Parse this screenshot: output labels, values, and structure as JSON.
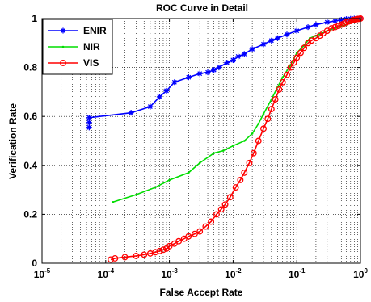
{
  "chart_data": {
    "type": "line",
    "title": "ROC Curve in Detail",
    "xlabel": "False Accept Rate",
    "ylabel": "Verification Rate",
    "xscale": "log",
    "xlim": [
      1e-05,
      1
    ],
    "ylim": [
      0,
      1
    ],
    "xticks": [
      {
        "base": "10",
        "exp": "-5",
        "value": 1e-05
      },
      {
        "base": "10",
        "exp": "-4",
        "value": 0.0001
      },
      {
        "base": "10",
        "exp": "-3",
        "value": 0.001
      },
      {
        "base": "10",
        "exp": "-2",
        "value": 0.01
      },
      {
        "base": "10",
        "exp": "-1",
        "value": 0.1
      },
      {
        "base": "10",
        "exp": "0",
        "value": 1
      }
    ],
    "yticks": [
      "0",
      "0.2",
      "0.4",
      "0.6",
      "0.8",
      "1"
    ],
    "grid": "dotted (x major+minor, y major)",
    "legend": "top-left",
    "series": [
      {
        "name": "ENIR",
        "color": "#0000ff",
        "marker": "star",
        "x": [
          5.5e-05,
          5.5e-05,
          5.5e-05,
          0.00025,
          0.0005,
          0.0007,
          0.0009,
          0.0012,
          0.002,
          0.003,
          0.004,
          0.005,
          0.006,
          0.008,
          0.01,
          0.012,
          0.015,
          0.02,
          0.03,
          0.04,
          0.05,
          0.07,
          0.1,
          0.15,
          0.2,
          0.3,
          0.4,
          0.5,
          0.6,
          0.7,
          0.8,
          0.9,
          1.0
        ],
        "y": [
          0.555,
          0.575,
          0.595,
          0.615,
          0.64,
          0.68,
          0.705,
          0.74,
          0.76,
          0.775,
          0.78,
          0.79,
          0.8,
          0.82,
          0.83,
          0.845,
          0.855,
          0.875,
          0.895,
          0.91,
          0.92,
          0.935,
          0.95,
          0.965,
          0.975,
          0.985,
          0.99,
          0.995,
          0.998,
          0.999,
          1.0,
          1.0,
          1.0
        ]
      },
      {
        "name": "NIR",
        "color": "#00dd00",
        "marker": "point",
        "x": [
          0.00013,
          0.0003,
          0.0006,
          0.001,
          0.002,
          0.003,
          0.005,
          0.007,
          0.01,
          0.015,
          0.02,
          0.025,
          0.03,
          0.04,
          0.05,
          0.06,
          0.08,
          0.1,
          0.13,
          0.16,
          0.2,
          0.25,
          0.3,
          0.4,
          0.5,
          0.6,
          0.7,
          0.8,
          0.9,
          1.0
        ],
        "y": [
          0.25,
          0.28,
          0.31,
          0.34,
          0.37,
          0.41,
          0.45,
          0.46,
          0.48,
          0.5,
          0.53,
          0.57,
          0.61,
          0.67,
          0.72,
          0.76,
          0.81,
          0.86,
          0.89,
          0.92,
          0.93,
          0.94,
          0.95,
          0.96,
          0.97,
          0.975,
          0.985,
          0.99,
          0.995,
          1.0
        ]
      },
      {
        "name": "VIS",
        "color": "#ff0000",
        "marker": "circle",
        "x": [
          0.00012,
          0.00014,
          0.0002,
          0.0003,
          0.0004,
          0.0005,
          0.0006,
          0.0007,
          0.0008,
          0.0009,
          0.001,
          0.0012,
          0.0014,
          0.0017,
          0.002,
          0.0025,
          0.003,
          0.0037,
          0.0045,
          0.0055,
          0.0065,
          0.0075,
          0.009,
          0.011,
          0.013,
          0.015,
          0.018,
          0.021,
          0.025,
          0.03,
          0.035,
          0.04,
          0.046,
          0.053,
          0.06,
          0.07,
          0.08,
          0.09,
          0.1,
          0.115,
          0.13,
          0.15,
          0.17,
          0.2,
          0.23,
          0.26,
          0.3,
          0.35,
          0.4,
          0.45,
          0.5,
          0.55,
          0.6,
          0.65,
          0.7,
          0.75,
          0.8,
          0.85,
          0.9,
          0.95,
          1.0
        ],
        "y": [
          0.015,
          0.02,
          0.025,
          0.03,
          0.035,
          0.04,
          0.045,
          0.05,
          0.055,
          0.06,
          0.07,
          0.08,
          0.09,
          0.1,
          0.11,
          0.12,
          0.13,
          0.15,
          0.17,
          0.2,
          0.22,
          0.24,
          0.27,
          0.31,
          0.34,
          0.37,
          0.41,
          0.45,
          0.5,
          0.55,
          0.59,
          0.63,
          0.67,
          0.71,
          0.74,
          0.77,
          0.8,
          0.82,
          0.84,
          0.86,
          0.88,
          0.9,
          0.91,
          0.92,
          0.93,
          0.94,
          0.95,
          0.96,
          0.965,
          0.97,
          0.975,
          0.98,
          0.985,
          0.988,
          0.99,
          0.993,
          0.995,
          0.997,
          0.998,
          0.999,
          1.0
        ]
      }
    ]
  }
}
